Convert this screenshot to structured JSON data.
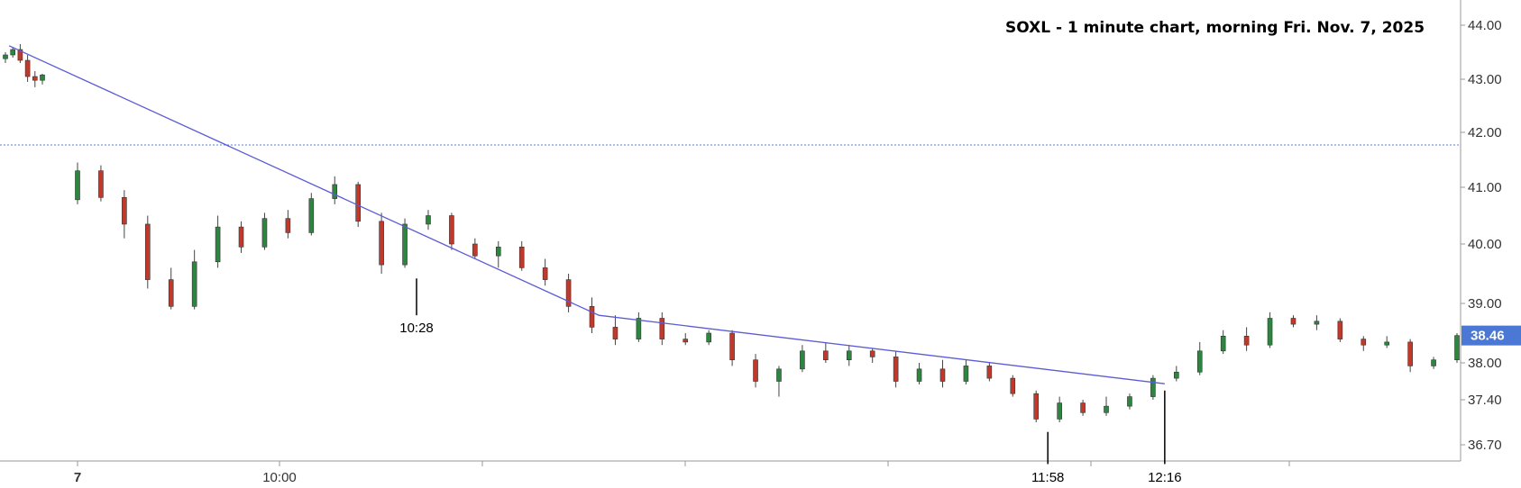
{
  "chart_data": {
    "type": "candlestick",
    "title": "SOXL - 1 minute chart, morning Fri. Nov. 7, 2025",
    "y_ticks": [
      "44.00",
      "43.00",
      "42.00",
      "41.00",
      "40.00",
      "39.00",
      "38.00",
      "37.40",
      "36.70"
    ],
    "x_ticks": [
      "7",
      "10:00"
    ],
    "ylim": [
      36.5,
      44.3
    ],
    "grid": false,
    "colors": {
      "up": "#2e8540",
      "down": "#c0392b",
      "trendline": "#5b5bd6",
      "reference": "#5b7fd6",
      "badge": "#4a78d4",
      "axis": "#999999"
    },
    "last_price": "38.46",
    "reference_level": 41.77,
    "trendlines": [
      {
        "points": [
          [
            0.5,
            43.62
          ],
          [
            28.3,
            38.8
          ],
          [
            52.5,
            37.66
          ]
        ]
      }
    ],
    "annotations": [
      {
        "label": "10:28",
        "index": 20.5,
        "top": 39.42,
        "bottom": 38.8
      },
      {
        "label": "11:58",
        "index": 47.5,
        "top": 36.9,
        "bottom": 36.4
      },
      {
        "label": "12:16",
        "index": 52.5,
        "top": 37.55,
        "bottom": 36.4
      }
    ],
    "candles": [
      [
        43.38,
        43.5,
        43.3,
        43.45
      ],
      [
        43.45,
        43.6,
        43.4,
        43.55
      ],
      [
        43.55,
        43.65,
        43.3,
        43.35
      ],
      [
        43.35,
        43.45,
        42.95,
        43.05
      ],
      [
        43.05,
        43.15,
        42.85,
        42.98
      ],
      [
        42.98,
        43.1,
        42.9,
        43.08
      ],
      [
        40.78,
        41.45,
        40.7,
        41.3
      ],
      [
        41.3,
        41.4,
        40.75,
        40.82
      ],
      [
        40.82,
        40.95,
        40.1,
        40.35
      ],
      [
        40.35,
        40.5,
        39.25,
        39.4
      ],
      [
        39.4,
        39.6,
        38.9,
        38.95
      ],
      [
        38.95,
        39.9,
        38.9,
        39.7
      ],
      [
        39.7,
        40.5,
        39.6,
        40.3
      ],
      [
        40.3,
        40.4,
        39.85,
        39.95
      ],
      [
        39.95,
        40.55,
        39.9,
        40.45
      ],
      [
        40.45,
        40.6,
        40.1,
        40.2
      ],
      [
        40.2,
        40.9,
        40.15,
        40.8
      ],
      [
        40.8,
        41.2,
        40.7,
        41.05
      ],
      [
        41.05,
        41.1,
        40.3,
        40.4
      ],
      [
        40.4,
        40.55,
        39.5,
        39.65
      ],
      [
        39.65,
        40.45,
        39.6,
        40.35
      ],
      [
        40.35,
        40.6,
        40.25,
        40.5
      ],
      [
        40.5,
        40.55,
        39.9,
        40.0
      ],
      [
        40.0,
        40.1,
        39.75,
        39.8
      ],
      [
        39.8,
        40.05,
        39.6,
        39.95
      ],
      [
        39.95,
        40.05,
        39.55,
        39.6
      ],
      [
        39.6,
        39.75,
        39.3,
        39.4
      ],
      [
        39.4,
        39.5,
        38.85,
        38.95
      ],
      [
        38.95,
        39.1,
        38.5,
        38.6
      ],
      [
        38.6,
        38.8,
        38.3,
        38.4
      ],
      [
        38.4,
        38.85,
        38.35,
        38.75
      ],
      [
        38.75,
        38.85,
        38.3,
        38.4
      ],
      [
        38.4,
        38.5,
        38.3,
        38.35
      ],
      [
        38.35,
        38.55,
        38.3,
        38.5
      ],
      [
        38.5,
        38.55,
        37.95,
        38.05
      ],
      [
        38.05,
        38.15,
        37.6,
        37.7
      ],
      [
        37.7,
        37.95,
        37.45,
        37.9
      ],
      [
        37.9,
        38.3,
        37.85,
        38.2
      ],
      [
        38.2,
        38.35,
        38.0,
        38.05
      ],
      [
        38.05,
        38.3,
        37.95,
        38.2
      ],
      [
        38.2,
        38.25,
        38.0,
        38.1
      ],
      [
        38.1,
        38.2,
        37.6,
        37.7
      ],
      [
        37.7,
        38.0,
        37.65,
        37.9
      ],
      [
        37.9,
        38.05,
        37.6,
        37.7
      ],
      [
        37.7,
        38.05,
        37.65,
        37.95
      ],
      [
        37.95,
        38.0,
        37.7,
        37.75
      ],
      [
        37.75,
        37.8,
        37.45,
        37.5
      ],
      [
        37.5,
        37.55,
        37.05,
        37.1
      ],
      [
        37.1,
        37.45,
        37.05,
        37.35
      ],
      [
        37.35,
        37.4,
        37.15,
        37.2
      ],
      [
        37.2,
        37.45,
        37.15,
        37.3
      ],
      [
        37.3,
        37.5,
        37.25,
        37.45
      ],
      [
        37.45,
        37.8,
        37.4,
        37.75
      ],
      [
        37.75,
        37.95,
        37.7,
        37.85
      ],
      [
        37.85,
        38.35,
        37.8,
        38.2
      ],
      [
        38.2,
        38.55,
        38.15,
        38.45
      ],
      [
        38.45,
        38.6,
        38.2,
        38.3
      ],
      [
        38.3,
        38.85,
        38.25,
        38.75
      ],
      [
        38.75,
        38.8,
        38.6,
        38.65
      ],
      [
        38.65,
        38.8,
        38.55,
        38.7
      ],
      [
        38.7,
        38.75,
        38.35,
        38.4
      ],
      [
        38.4,
        38.45,
        38.2,
        38.3
      ],
      [
        38.3,
        38.45,
        38.25,
        38.35
      ],
      [
        38.35,
        38.4,
        37.85,
        37.95
      ],
      [
        37.95,
        38.1,
        37.9,
        38.05
      ],
      [
        38.05,
        38.5,
        38.0,
        38.46
      ]
    ]
  }
}
